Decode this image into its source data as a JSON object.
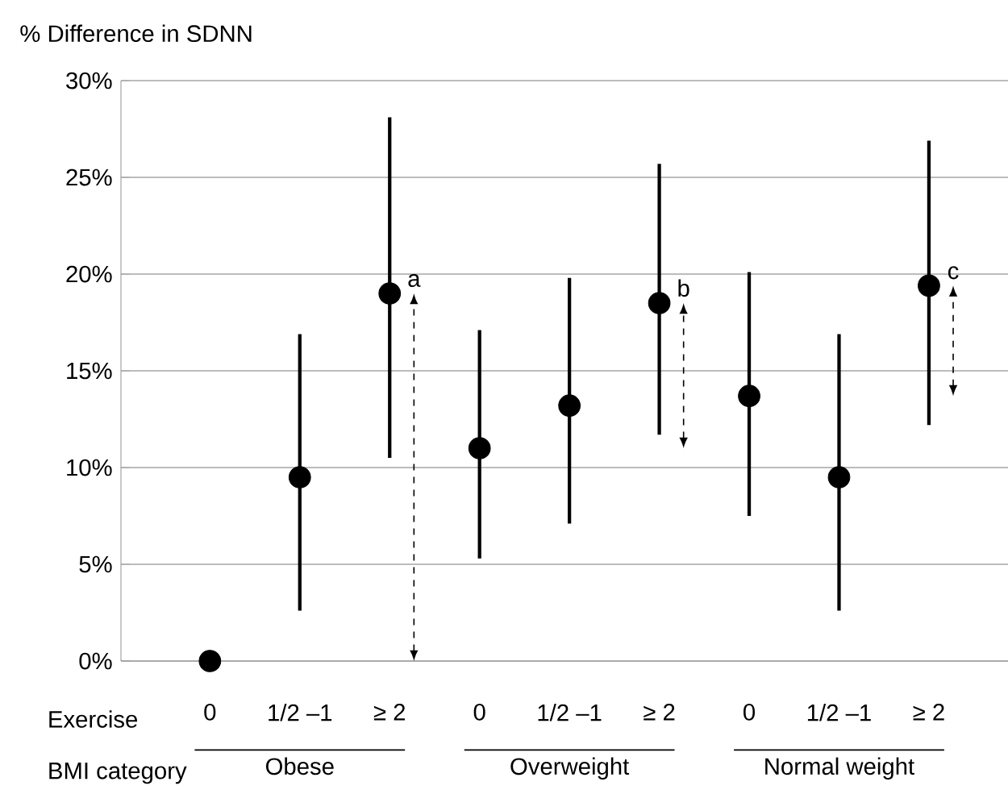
{
  "chart_data": {
    "type": "scatter",
    "ylabel": "% Difference in SDNN",
    "categories": [
      "0",
      "1/2 –1",
      "≥ 2",
      "0",
      "1/2 –1",
      "≥ 2",
      "0",
      "1/2 –1",
      "≥ 2"
    ],
    "series": [
      {
        "color": "#000000",
        "values": [
          0,
          9.5,
          19.0,
          11.0,
          13.2,
          18.5,
          13.7,
          9.5,
          19.4
        ],
        "errors": [
          null,
          [
            2.6,
            16.9
          ],
          [
            10.5,
            28.1
          ],
          [
            5.3,
            17.1
          ],
          [
            7.1,
            19.8
          ],
          [
            11.7,
            25.7
          ],
          [
            7.5,
            20.1
          ],
          [
            2.6,
            16.9
          ],
          [
            12.2,
            26.9
          ]
        ]
      }
    ],
    "ylim": [
      0,
      30
    ],
    "yticks": [
      {
        "value": 0,
        "label": "0%"
      },
      {
        "value": 5,
        "label": "5%"
      },
      {
        "value": 10,
        "label": "10%"
      },
      {
        "value": 15,
        "label": "15%"
      },
      {
        "value": 20,
        "label": "20%"
      },
      {
        "value": 25,
        "label": "25%"
      },
      {
        "value": 30,
        "label": "30%"
      }
    ],
    "grid": "y",
    "marker": "circle",
    "annotations": [
      "Exercise",
      "BMI category",
      "Obese",
      "Overweight",
      "Normal weight",
      "a",
      "b",
      "c"
    ]
  }
}
